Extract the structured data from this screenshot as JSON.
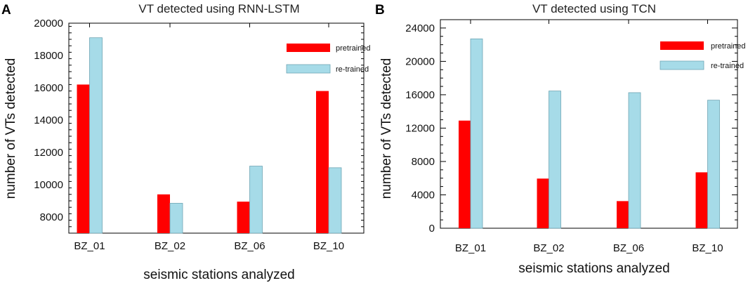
{
  "colors": {
    "pretrained": "#ff0000",
    "retrained": "#a6dbe8",
    "retrained_stroke": "#6fa5b4"
  },
  "chart_data": [
    {
      "panel": "A",
      "type": "bar",
      "title": "VT detected using RNN-LSTM",
      "xlabel": "seismic stations analyzed",
      "ylabel": "number of VTs detected",
      "categories": [
        "BZ_01",
        "BZ_02",
        "BZ_06",
        "BZ_10"
      ],
      "series": [
        {
          "name": "pretrained",
          "values": [
            16200,
            9400,
            8950,
            15800
          ]
        },
        {
          "name": "re-trained",
          "values": [
            19100,
            8850,
            11150,
            11050
          ]
        }
      ],
      "ylim": [
        7000,
        20000
      ],
      "yticks": [
        8000,
        10000,
        12000,
        14000,
        16000,
        18000,
        20000
      ],
      "legend": "top-right"
    },
    {
      "panel": "B",
      "type": "bar",
      "title": "VT detected using TCN",
      "xlabel": "seismic stations analyzed",
      "ylabel": "number of VTs detected",
      "categories": [
        "BZ_01",
        "BZ_02",
        "BZ_06",
        "BZ_10"
      ],
      "series": [
        {
          "name": "pretrained",
          "values": [
            12900,
            5950,
            3250,
            6700
          ]
        },
        {
          "name": "re-trained",
          "values": [
            22700,
            16450,
            16250,
            15350
          ]
        }
      ],
      "ylim": [
        0,
        25000
      ],
      "yticks": [
        0,
        4000,
        8000,
        12000,
        16000,
        20000,
        24000
      ],
      "legend": "top-right"
    }
  ]
}
